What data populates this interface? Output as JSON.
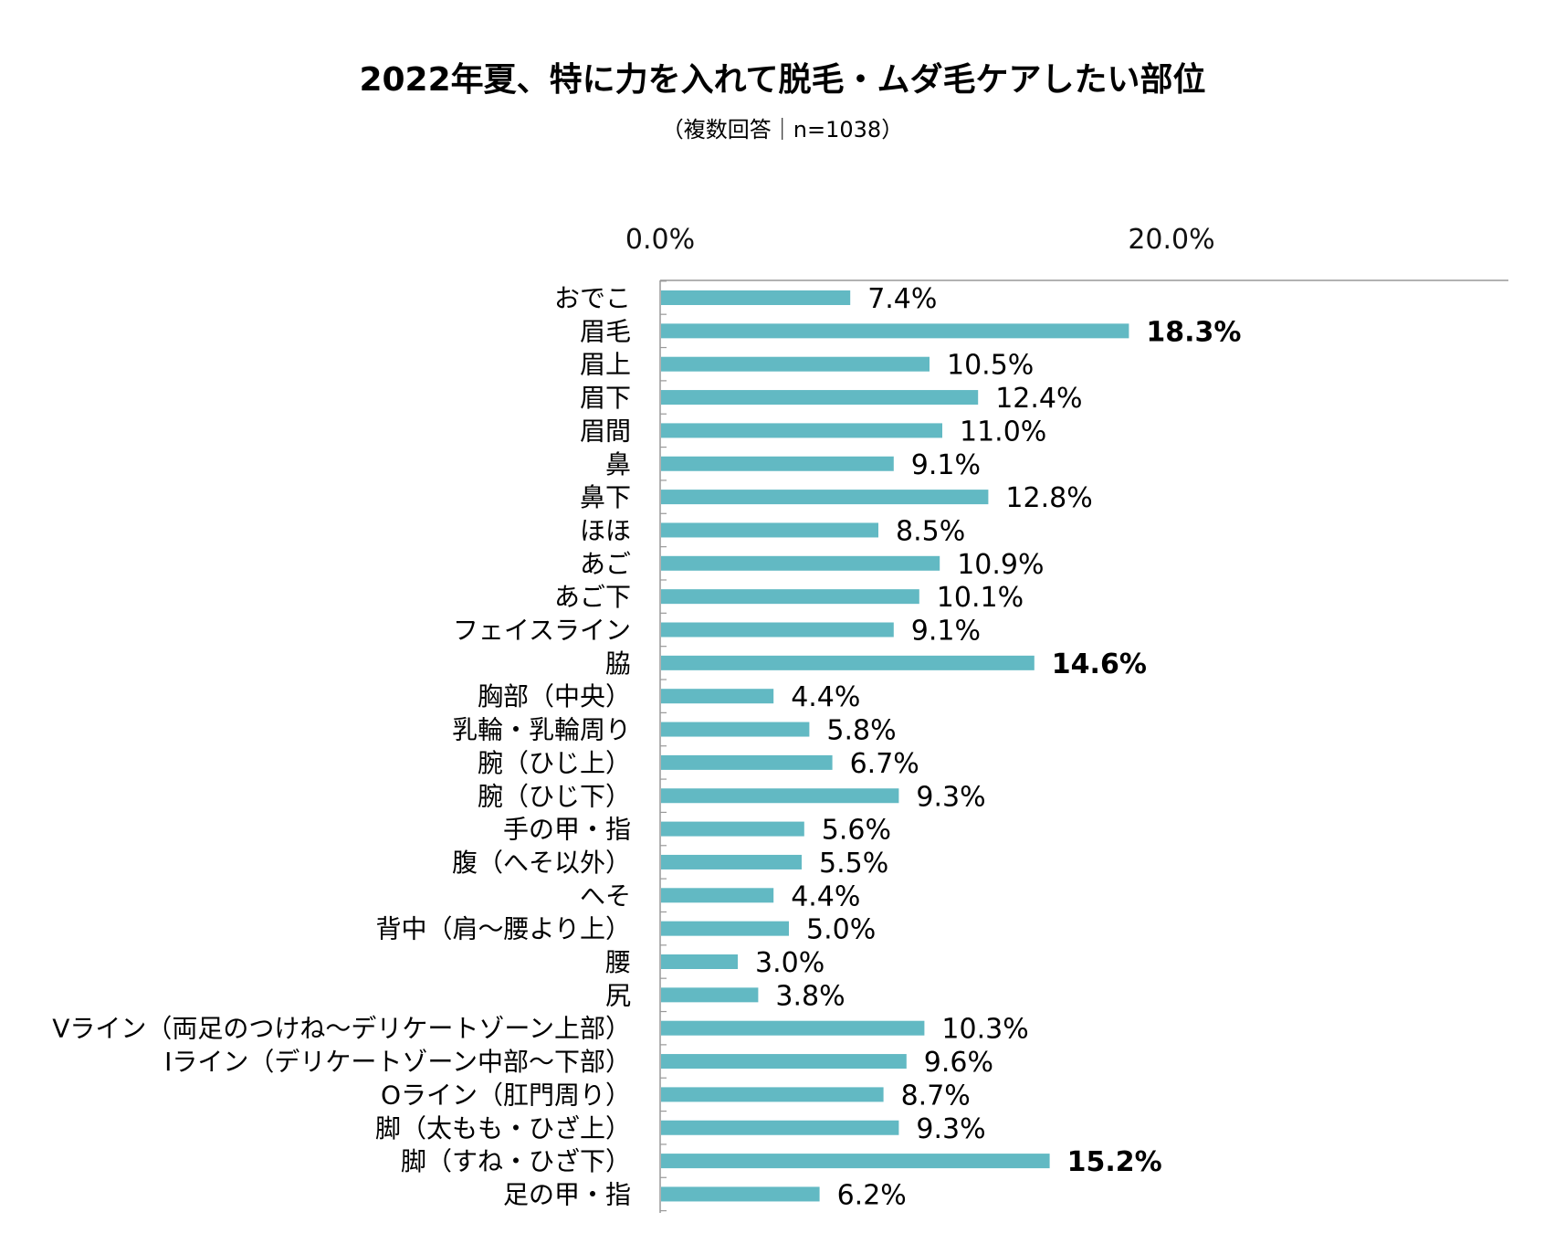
{
  "chart_data": {
    "type": "bar",
    "orientation": "horizontal",
    "title": "2022年夏、特に力を入れて脱毛・ムダ毛ケアしたい部位",
    "subtitle": "（複数回答｜n=1038）",
    "xlim": [
      0,
      30
    ],
    "ticks": [
      {
        "value": 0,
        "label": "0.0%"
      },
      {
        "value": 20,
        "label": "20.0%"
      }
    ],
    "tick_position": "top",
    "grid": false,
    "bar_color": "#62b9c3",
    "categories": [
      "おでこ",
      "眉毛",
      "眉上",
      "眉下",
      "眉間",
      "鼻",
      "鼻下",
      "ほほ",
      "あご",
      "あご下",
      "フェイスライン",
      "脇",
      "胸部（中央）",
      "乳輪・乳輪周り",
      "腕（ひじ上）",
      "腕（ひじ下）",
      "手の甲・指",
      "腹（へそ以外）",
      "へそ",
      "背中（肩～腰より上）",
      "腰",
      "尻",
      "Vライン（両足のつけね～デリケートゾーン上部）",
      "Iライン（デリケートゾーン中部～下部）",
      "Oライン（肛門周り）",
      "脚（太もも・ひざ上）",
      "脚（すね・ひざ下）",
      "足の甲・指"
    ],
    "values": [
      7.4,
      18.3,
      10.5,
      12.4,
      11.0,
      9.1,
      12.8,
      8.5,
      10.9,
      10.1,
      9.1,
      14.6,
      4.4,
      5.8,
      6.7,
      9.3,
      5.6,
      5.5,
      4.4,
      5.0,
      3.0,
      3.8,
      10.3,
      9.6,
      8.7,
      9.3,
      15.2,
      6.2
    ],
    "value_labels": [
      "7.4%",
      "18.3%",
      "10.5%",
      "12.4%",
      "11.0%",
      "9.1%",
      "12.8%",
      "8.5%",
      "10.9%",
      "10.1%",
      "9.1%",
      "14.6%",
      "4.4%",
      "5.8%",
      "6.7%",
      "9.3%",
      "5.6%",
      "5.5%",
      "4.4%",
      "5.0%",
      "3.0%",
      "3.8%",
      "10.3%",
      "9.6%",
      "8.7%",
      "9.3%",
      "15.2%",
      "6.2%"
    ],
    "highlighted": [
      "眉毛",
      "脇",
      "脚（すね・ひざ下）"
    ]
  }
}
